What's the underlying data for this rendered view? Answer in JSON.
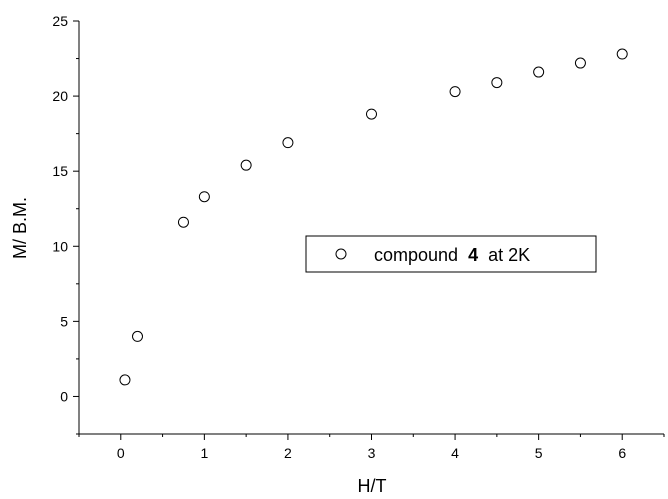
{
  "chart_data": {
    "type": "scatter",
    "xlabel": "H/T",
    "ylabel": "M/ B.M.",
    "xlim": [
      -0.5,
      6.5
    ],
    "ylim": [
      -2.5,
      25
    ],
    "xticks": [
      0,
      1,
      2,
      3,
      4,
      5,
      6
    ],
    "yticks": [
      0,
      5,
      10,
      15,
      20,
      25
    ],
    "xtick_labels": [
      "0",
      "1",
      "2",
      "3",
      "4",
      "5",
      "6"
    ],
    "ytick_labels": [
      "0",
      "5",
      "10",
      "15",
      "20",
      "25"
    ],
    "grid": false,
    "legend_placement": "center-right",
    "series": [
      {
        "name_prefix": "compound",
        "name_bold": "4",
        "name_suffix": "at 2K",
        "marker": "open-circle",
        "x": [
          0.05,
          0.2,
          0.75,
          1.0,
          1.5,
          2.0,
          3.0,
          4.0,
          4.5,
          5.0,
          5.5,
          6.0
        ],
        "y": [
          1.1,
          4.0,
          11.6,
          13.3,
          15.4,
          16.9,
          18.8,
          20.3,
          20.9,
          21.6,
          22.2,
          22.8
        ]
      }
    ]
  }
}
